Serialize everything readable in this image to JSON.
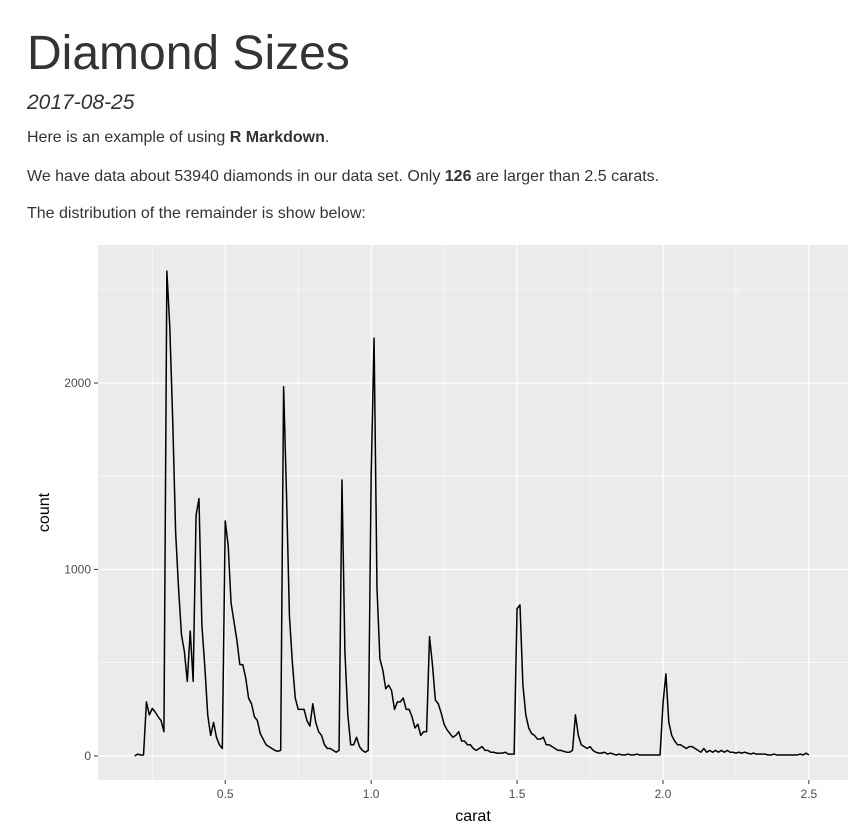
{
  "header": {
    "title": "Diamond Sizes",
    "date": "2017-08-25"
  },
  "paragraphs": [
    [
      {
        "text": "Here is an example of using "
      },
      {
        "text": "R Markdown",
        "bold": true
      },
      {
        "text": "."
      }
    ],
    [
      {
        "text": "We have data about 53940 diamonds in our data set. Only "
      },
      {
        "text": "126",
        "bold": true
      },
      {
        "text": " are larger than 2.5 carats."
      }
    ],
    [
      {
        "text": "The distribution of the remainder is show below:"
      }
    ]
  ],
  "chart_data": {
    "type": "line",
    "x_label": "carat",
    "y_label": "count",
    "color": "#000000",
    "panel_color": "#ebebeb",
    "grid": true,
    "xlim": [
      0.064,
      2.634
    ],
    "ylim": [
      -129,
      2740
    ],
    "xticks": [
      0.5,
      {
        "value": 1,
        "label": "1.0"
      },
      1.5,
      {
        "value": 2,
        "label": "2.0"
      },
      2.5
    ],
    "yticks": [
      0,
      1000,
      2000
    ],
    "x_minor_grid": [
      0.25,
      0.75,
      1.25,
      1.75,
      2.25
    ],
    "y_minor_grid": [
      500,
      1500,
      2500
    ],
    "x": [
      0.19,
      0.2,
      0.21,
      0.22,
      0.23,
      0.24,
      0.25,
      0.26,
      0.27,
      0.28,
      0.29,
      0.3,
      0.31,
      0.32,
      0.33,
      0.34,
      0.35,
      0.36,
      0.37,
      0.38,
      0.39,
      0.4,
      0.41,
      0.42,
      0.43,
      0.44,
      0.45,
      0.46,
      0.47,
      0.48,
      0.49,
      0.5,
      0.51,
      0.52,
      0.53,
      0.54,
      0.55,
      0.56,
      0.57,
      0.58,
      0.59,
      0.6,
      0.61,
      0.62,
      0.63,
      0.64,
      0.65,
      0.66,
      0.67,
      0.68,
      0.69,
      0.7,
      0.71,
      0.72,
      0.73,
      0.74,
      0.75,
      0.76,
      0.77,
      0.78,
      0.79,
      0.8,
      0.81,
      0.82,
      0.83,
      0.84,
      0.85,
      0.86,
      0.87,
      0.88,
      0.89,
      0.9,
      0.91,
      0.92,
      0.93,
      0.94,
      0.95,
      0.96,
      0.97,
      0.98,
      0.99,
      1.0,
      1.01,
      1.02,
      1.03,
      1.04,
      1.05,
      1.06,
      1.07,
      1.08,
      1.09,
      1.1,
      1.11,
      1.12,
      1.13,
      1.14,
      1.15,
      1.16,
      1.17,
      1.18,
      1.19,
      1.2,
      1.21,
      1.22,
      1.23,
      1.24,
      1.25,
      1.26,
      1.27,
      1.28,
      1.29,
      1.3,
      1.31,
      1.32,
      1.33,
      1.34,
      1.35,
      1.36,
      1.37,
      1.38,
      1.39,
      1.4,
      1.41,
      1.42,
      1.43,
      1.44,
      1.45,
      1.46,
      1.47,
      1.48,
      1.49,
      1.5,
      1.51,
      1.52,
      1.53,
      1.54,
      1.55,
      1.56,
      1.57,
      1.58,
      1.59,
      1.6,
      1.61,
      1.62,
      1.63,
      1.64,
      1.65,
      1.66,
      1.67,
      1.68,
      1.69,
      1.7,
      1.71,
      1.72,
      1.73,
      1.74,
      1.75,
      1.76,
      1.77,
      1.78,
      1.79,
      1.8,
      1.81,
      1.82,
      1.83,
      1.84,
      1.85,
      1.86,
      1.87,
      1.88,
      1.89,
      1.9,
      1.91,
      1.92,
      1.93,
      1.94,
      1.95,
      1.96,
      1.97,
      1.98,
      1.99,
      2.0,
      2.01,
      2.02,
      2.03,
      2.04,
      2.05,
      2.06,
      2.07,
      2.08,
      2.09,
      2.1,
      2.11,
      2.12,
      2.13,
      2.14,
      2.15,
      2.16,
      2.17,
      2.18,
      2.19,
      2.2,
      2.21,
      2.22,
      2.23,
      2.24,
      2.25,
      2.26,
      2.27,
      2.28,
      2.29,
      2.3,
      2.31,
      2.32,
      2.33,
      2.34,
      2.35,
      2.36,
      2.37,
      2.38,
      2.39,
      2.4,
      2.41,
      2.42,
      2.43,
      2.44,
      2.45,
      2.46,
      2.47,
      2.48,
      2.49,
      2.5
    ],
    "values": [
      0,
      10,
      5,
      5,
      290,
      220,
      255,
      235,
      210,
      190,
      130,
      2600,
      2300,
      1800,
      1200,
      900,
      650,
      560,
      400,
      670,
      400,
      1290,
      1380,
      700,
      480,
      220,
      110,
      180,
      100,
      60,
      40,
      1260,
      1130,
      820,
      720,
      620,
      490,
      490,
      420,
      310,
      280,
      210,
      190,
      120,
      90,
      60,
      50,
      40,
      30,
      25,
      30,
      1980,
      1400,
      750,
      500,
      310,
      250,
      250,
      250,
      190,
      160,
      280,
      180,
      130,
      110,
      60,
      40,
      40,
      30,
      20,
      30,
      1480,
      560,
      220,
      60,
      60,
      100,
      50,
      30,
      20,
      30,
      1500,
      2240,
      900,
      520,
      460,
      360,
      380,
      350,
      250,
      290,
      290,
      310,
      250,
      250,
      210,
      150,
      170,
      110,
      130,
      130,
      640,
      490,
      300,
      280,
      230,
      170,
      140,
      120,
      100,
      110,
      130,
      80,
      80,
      60,
      60,
      40,
      30,
      40,
      50,
      30,
      30,
      20,
      20,
      15,
      15,
      15,
      20,
      10,
      10,
      10,
      790,
      810,
      380,
      220,
      150,
      120,
      110,
      90,
      90,
      100,
      60,
      60,
      50,
      40,
      30,
      30,
      25,
      20,
      20,
      30,
      220,
      110,
      60,
      50,
      40,
      50,
      30,
      20,
      15,
      15,
      20,
      10,
      15,
      10,
      5,
      10,
      5,
      5,
      10,
      5,
      5,
      10,
      5,
      5,
      5,
      5,
      5,
      5,
      5,
      5,
      280,
      440,
      180,
      110,
      80,
      60,
      60,
      50,
      40,
      50,
      50,
      40,
      30,
      20,
      40,
      20,
      30,
      20,
      30,
      20,
      30,
      20,
      30,
      20,
      20,
      15,
      20,
      15,
      20,
      15,
      10,
      15,
      10,
      10,
      10,
      10,
      5,
      5,
      10,
      5,
      5,
      5,
      5,
      5,
      5,
      5,
      5,
      10,
      5,
      15,
      5
    ]
  }
}
